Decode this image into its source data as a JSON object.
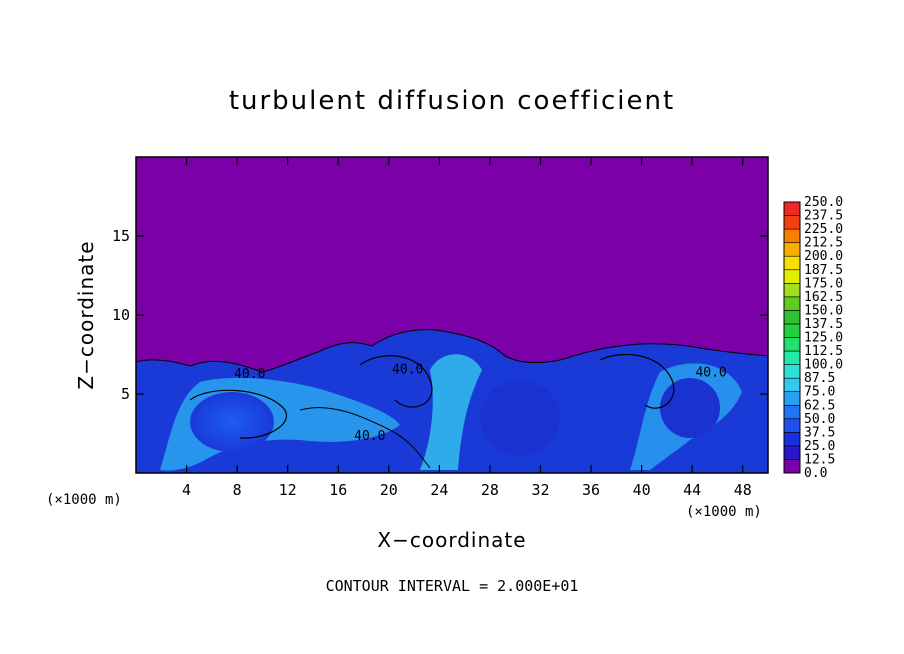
{
  "chart_data": {
    "type": "heatmap",
    "title": "turbulent diffusion coefficient",
    "xlabel": "X−coordinate",
    "ylabel": "Z−coordinate",
    "x_unit_left": "(×1000 m)",
    "x_unit_right": "(×1000 m)",
    "xlim": [
      0,
      50
    ],
    "ylim": [
      0,
      20
    ],
    "xticks": [
      4,
      8,
      12,
      16,
      20,
      24,
      28,
      32,
      36,
      40,
      44,
      48
    ],
    "yticks": [
      5,
      10,
      15
    ],
    "contour_interval_text": "CONTOUR INTERVAL = 2.000E+01",
    "contour_labels": [
      "40.0",
      "40.0",
      "40.0",
      "40.0"
    ],
    "colorbar": {
      "levels": [
        "0.0",
        "12.5",
        "25.0",
        "37.5",
        "50.0",
        "62.5",
        "75.0",
        "87.5",
        "100.0",
        "112.5",
        "125.0",
        "137.5",
        "150.0",
        "162.5",
        "175.0",
        "187.5",
        "200.0",
        "212.5",
        "225.0",
        "237.5",
        "250.0"
      ],
      "colors": [
        "#7b00a8",
        "#2a18c8",
        "#1630e0",
        "#1f50ee",
        "#1e74f2",
        "#2aa0f0",
        "#34c8ee",
        "#30e0d8",
        "#22e8a8",
        "#20e070",
        "#22d040",
        "#30c030",
        "#60cc20",
        "#a0e020",
        "#e0f000",
        "#f8e000",
        "#f8b000",
        "#f88000",
        "#f04010",
        "#f02828",
        "#f08080"
      ]
    },
    "background_value": 0.0,
    "turbulent_layer_top": 7.5
  }
}
